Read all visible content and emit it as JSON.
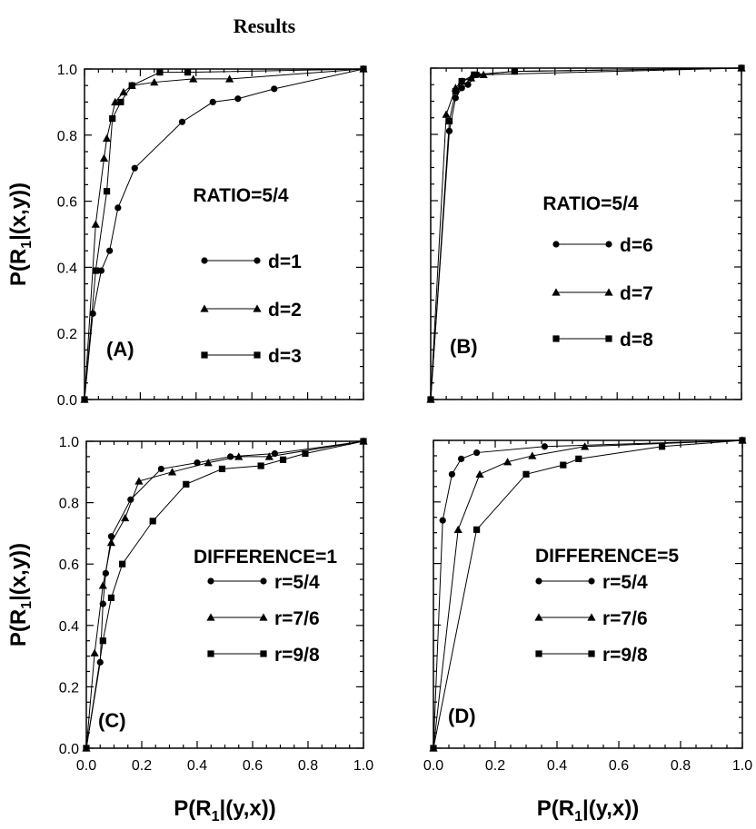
{
  "title": "Results",
  "chart_data": [
    {
      "id": "A",
      "type": "line",
      "panel_label": "(A)",
      "note": "RATIO=5/4",
      "ylabel": "P(R|(x,y))",
      "ylabel_sub": "1",
      "xlabel": "",
      "xlim": [
        0,
        1
      ],
      "ylim": [
        0,
        1
      ],
      "xticks": [],
      "yticks": [
        "0.0",
        "0.2",
        "0.4",
        "0.6",
        "0.8",
        "1.0"
      ],
      "grid": false,
      "legend_position": "bottom-right",
      "series": [
        {
          "name": "d=1",
          "marker": "circle",
          "x": [
            0,
            0.03,
            0.06,
            0.09,
            0.12,
            0.18,
            0.35,
            0.46,
            0.55,
            0.68,
            1.0
          ],
          "y": [
            0,
            0.26,
            0.39,
            0.45,
            0.58,
            0.7,
            0.84,
            0.9,
            0.91,
            0.94,
            1.0
          ]
        },
        {
          "name": "d=2",
          "marker": "triangle",
          "x": [
            0,
            0.04,
            0.07,
            0.08,
            0.11,
            0.14,
            0.17,
            0.25,
            0.39,
            0.52,
            1.0
          ],
          "y": [
            0,
            0.53,
            0.73,
            0.79,
            0.9,
            0.93,
            0.95,
            0.96,
            0.97,
            0.97,
            1.0
          ]
        },
        {
          "name": "d=3",
          "marker": "square",
          "x": [
            0,
            0.04,
            0.08,
            0.1,
            0.13,
            0.17,
            0.27,
            0.37,
            1.0
          ],
          "y": [
            0,
            0.39,
            0.63,
            0.85,
            0.9,
            0.95,
            0.99,
            0.99,
            1.0
          ]
        }
      ]
    },
    {
      "id": "B",
      "type": "line",
      "panel_label": "(B)",
      "note": "RATIO=5/4",
      "ylabel": "",
      "ylabel_sub": "",
      "xlabel": "",
      "xlim": [
        0,
        1
      ],
      "ylim": [
        0,
        1
      ],
      "xticks": [],
      "yticks": [],
      "grid": false,
      "legend_position": "bottom-right",
      "series": [
        {
          "name": "d=6",
          "marker": "circle",
          "x": [
            0,
            0.06,
            0.08,
            0.1,
            0.12,
            0.15,
            0.27,
            1.0
          ],
          "y": [
            0,
            0.81,
            0.91,
            0.94,
            0.95,
            0.98,
            0.99,
            1.0
          ]
        },
        {
          "name": "d=7",
          "marker": "triangle",
          "x": [
            0,
            0.05,
            0.08,
            0.1,
            0.13,
            0.17,
            1.0
          ],
          "y": [
            0,
            0.86,
            0.94,
            0.96,
            0.97,
            0.98,
            1.0
          ]
        },
        {
          "name": "d=8",
          "marker": "square",
          "x": [
            0,
            0.06,
            0.08,
            0.1,
            0.14,
            0.27,
            1.0
          ],
          "y": [
            0,
            0.84,
            0.93,
            0.96,
            0.98,
            0.99,
            1.0
          ]
        }
      ]
    },
    {
      "id": "C",
      "type": "line",
      "panel_label": "(C)",
      "note": "DIFFERENCE=1",
      "ylabel": "P(R|(x,y))",
      "ylabel_sub": "1",
      "xlabel": "P(R|(y,x))",
      "xlabel_sub": "1",
      "xlim": [
        0,
        1
      ],
      "ylim": [
        0,
        1
      ],
      "xticks": [
        "0.0",
        "0.2",
        "0.4",
        "0.6",
        "0.8",
        "1.0"
      ],
      "yticks": [
        "0.0",
        "0.2",
        "0.4",
        "0.6",
        "0.8",
        "1.0"
      ],
      "grid": false,
      "legend_position": "bottom-right",
      "series": [
        {
          "name": "r=5/4",
          "marker": "circle",
          "x": [
            0,
            0.05,
            0.06,
            0.07,
            0.09,
            0.16,
            0.27,
            0.4,
            0.52,
            0.68,
            1.0
          ],
          "y": [
            0,
            0.28,
            0.47,
            0.57,
            0.69,
            0.81,
            0.91,
            0.93,
            0.95,
            0.96,
            1.0
          ]
        },
        {
          "name": "r=7/6",
          "marker": "triangle",
          "x": [
            0,
            0.03,
            0.06,
            0.09,
            0.14,
            0.19,
            0.31,
            0.44,
            0.55,
            0.66,
            1.0
          ],
          "y": [
            0,
            0.31,
            0.53,
            0.67,
            0.75,
            0.87,
            0.9,
            0.93,
            0.95,
            0.95,
            1.0
          ]
        },
        {
          "name": "r=9/8",
          "marker": "square",
          "x": [
            0,
            0.06,
            0.09,
            0.13,
            0.24,
            0.36,
            0.49,
            0.63,
            0.71,
            0.79,
            1.0
          ],
          "y": [
            0,
            0.35,
            0.49,
            0.6,
            0.74,
            0.86,
            0.91,
            0.92,
            0.94,
            0.96,
            1.0
          ]
        }
      ]
    },
    {
      "id": "D",
      "type": "line",
      "panel_label": "(D)",
      "note": "DIFFERENCE=5",
      "ylabel": "",
      "ylabel_sub": "",
      "xlabel": "P(R|(y,x))",
      "xlabel_sub": "1",
      "xlim": [
        0,
        1
      ],
      "ylim": [
        0,
        1
      ],
      "xticks": [
        "0.0",
        "0.2",
        "0.4",
        "0.6",
        "0.8",
        "1.0"
      ],
      "yticks": [],
      "grid": false,
      "legend_position": "bottom-right",
      "series": [
        {
          "name": "r=5/4",
          "marker": "circle",
          "x": [
            0,
            0.03,
            0.06,
            0.09,
            0.14,
            0.36,
            1.0
          ],
          "y": [
            0,
            0.74,
            0.89,
            0.94,
            0.96,
            0.98,
            1.0
          ]
        },
        {
          "name": "r=7/6",
          "marker": "triangle",
          "x": [
            0,
            0.08,
            0.15,
            0.24,
            0.32,
            0.49,
            1.0
          ],
          "y": [
            0,
            0.71,
            0.89,
            0.93,
            0.95,
            0.98,
            1.0
          ]
        },
        {
          "name": "r=9/8",
          "marker": "square",
          "x": [
            0,
            0.14,
            0.3,
            0.42,
            0.47,
            0.74,
            1.0
          ],
          "y": [
            0,
            0.71,
            0.89,
            0.92,
            0.94,
            0.98,
            1.0
          ]
        }
      ]
    }
  ]
}
